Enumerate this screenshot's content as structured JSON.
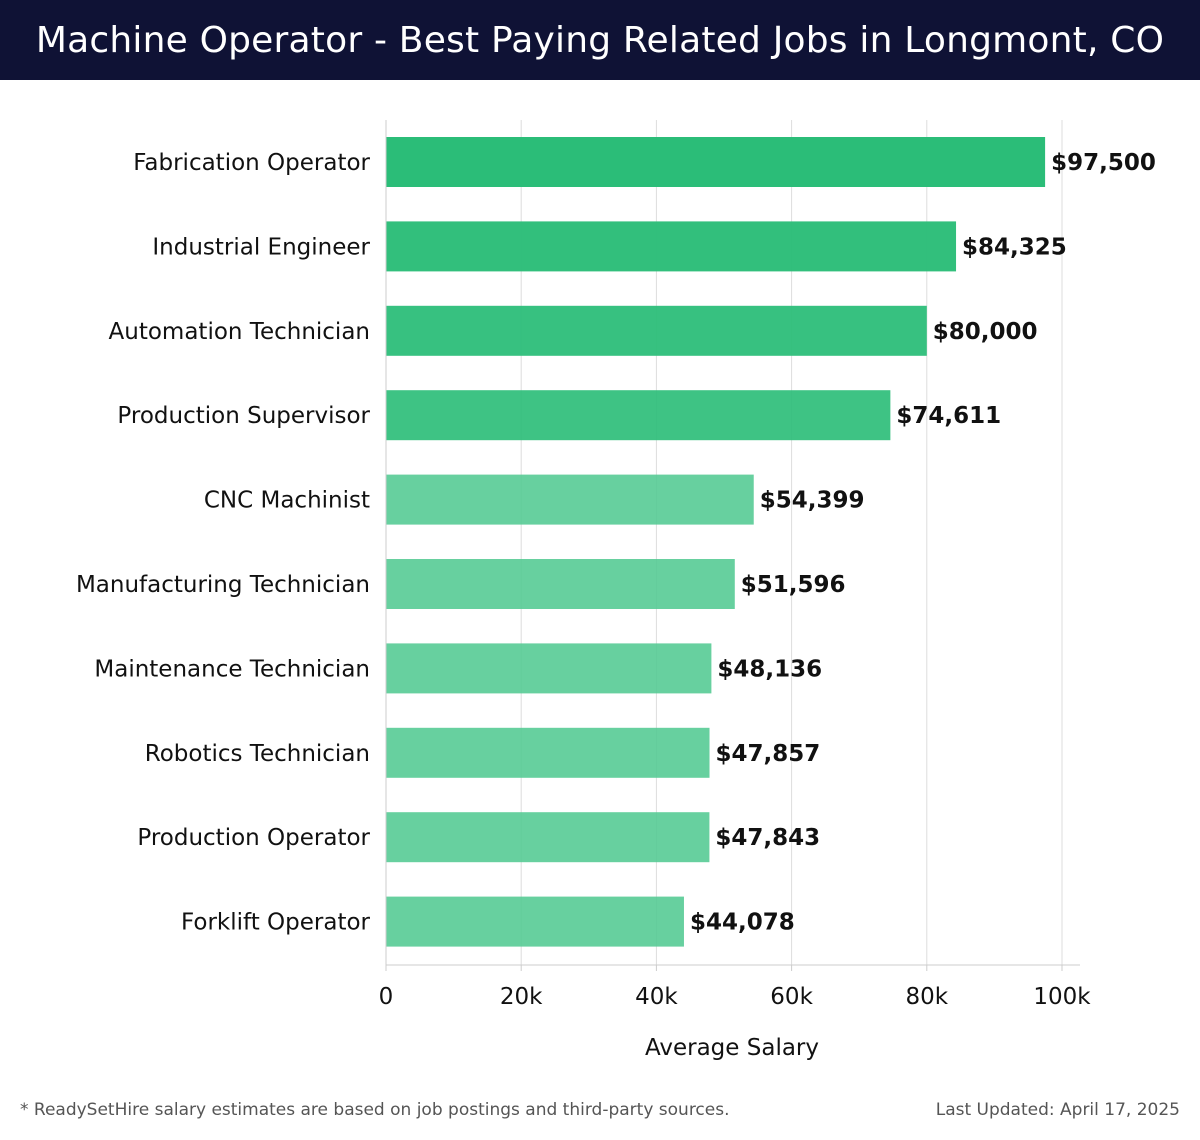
{
  "header": {
    "title": "Machine Operator - Best Paying Related Jobs in Longmont, CO"
  },
  "chart_data": {
    "type": "bar",
    "orientation": "horizontal",
    "categories": [
      "Fabrication Operator",
      "Industrial Engineer",
      "Automation Technician",
      "Production Supervisor",
      "CNC Machinist",
      "Manufacturing Technician",
      "Maintenance Technician",
      "Robotics Technician",
      "Production Operator",
      "Forklift Operator"
    ],
    "values": [
      97500,
      84325,
      80000,
      74611,
      54399,
      51596,
      48136,
      47857,
      47843,
      44078
    ],
    "value_labels": [
      "$97,500",
      "$84,325",
      "$80,000",
      "$74,611",
      "$54,399",
      "$51,596",
      "$48,136",
      "$47,857",
      "$47,843",
      "$44,078"
    ],
    "xlabel": "Average Salary",
    "xlim": [
      0,
      102500
    ],
    "xticks": [
      0,
      20000,
      40000,
      60000,
      80000,
      100000
    ],
    "xtick_labels": [
      "0",
      "20k",
      "40k",
      "60k",
      "80k",
      "100k"
    ],
    "grid": "vertical",
    "colors": {
      "bar_strong": "#2bbd78",
      "bar_light": "#52c992",
      "grid": "#dddddd",
      "axis": "#cccccc"
    }
  },
  "footer": {
    "note": "* ReadySetHire salary estimates are based on job postings and third-party sources.",
    "updated": "Last Updated: April 17, 2025"
  }
}
